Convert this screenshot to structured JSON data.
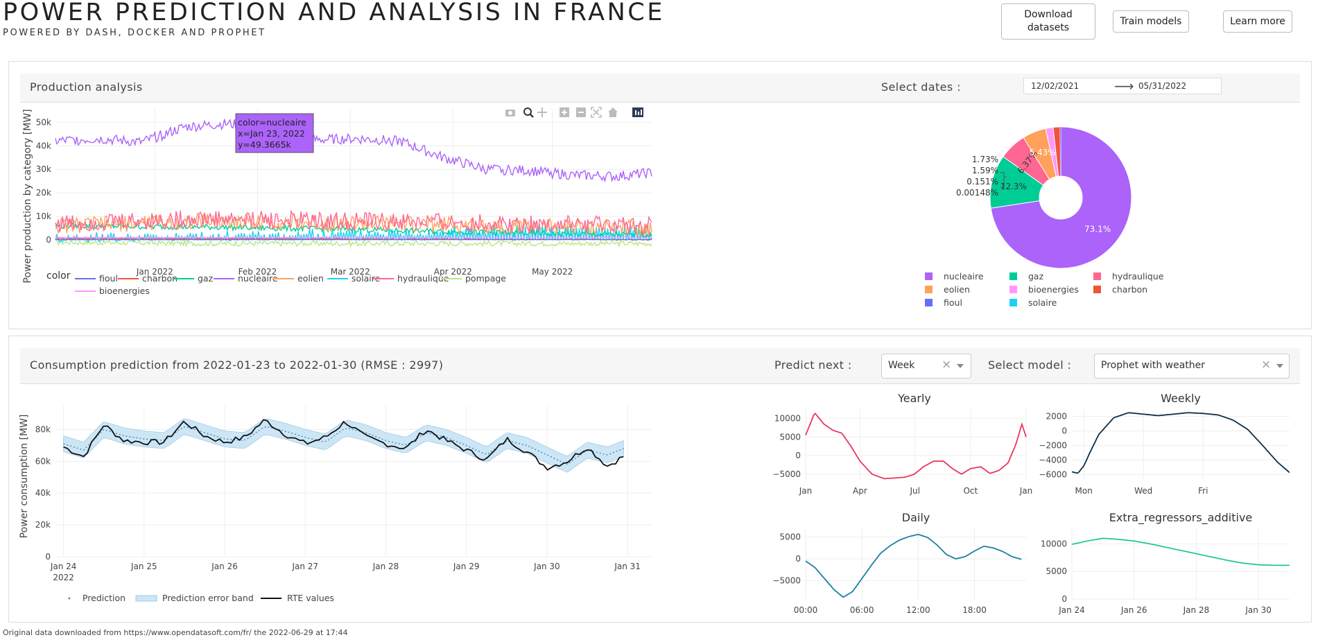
{
  "header": {
    "title": "POWER PREDICTION AND ANALYSIS IN FRANCE",
    "subtitle": "POWERED BY DASH, DOCKER AND PROPHET",
    "buttons": {
      "download": [
        "Download",
        "datasets"
      ],
      "train": "Train models",
      "learn": "Learn more"
    }
  },
  "production": {
    "title": "Production analysis",
    "select_dates_label": "Select dates :",
    "start_date": "12/02/2021",
    "end_date": "05/31/2022",
    "y_axis_label": "Power production by category [MW]",
    "legend_title": "color",
    "tooltip": [
      "color=nucleaire",
      "x=Jan 23, 2022",
      "y=49.3665k"
    ],
    "modebar_icons": [
      "camera-icon",
      "zoom-icon",
      "pan-icon",
      "zoom-in-icon",
      "zoom-out-icon",
      "autoscale-icon",
      "reset-axes-icon",
      "plotly-logo-icon"
    ]
  },
  "prediction": {
    "title": "Consumption prediction from 2022-01-23 to 2022-01-30 (RMSE : 2997)",
    "predict_next_label": "Predict next :",
    "predict_next_value": "Week",
    "select_model_label": "Select model :",
    "model_value": "Prophet with weather",
    "y_axis_label": "Power consumption [MW]"
  },
  "footer": "Original data downloaded from https://www.opendatasoft.com/fr/ the 2022-06-29 at 17:44",
  "colors": {
    "nucleaire": "#AB63FA",
    "hydraulique": "#FF6692",
    "eolien": "#FFA15A",
    "gaz": "#00CC96",
    "solaire": "#19D3F3",
    "pompage": "#B6E880",
    "fioul": "#636EFA",
    "charbon": "#EF553B",
    "bioenergies": "#FF97FF",
    "band": "#cde6f5",
    "rte": "#111111",
    "prediction": "#4a90c2"
  },
  "chart_data": [
    {
      "type": "line",
      "title": "",
      "ylabel": "Power production by category [MW]",
      "ylim": [
        -5000,
        56000
      ],
      "x_ticks": [
        "Jan 2022",
        "Feb 2022",
        "Mar 2022",
        "Apr 2022",
        "May 2022"
      ],
      "y_ticks": [
        "0",
        "10k",
        "20k",
        "30k",
        "40k",
        "50k"
      ],
      "y_tick_values": [
        0,
        10000,
        20000,
        30000,
        40000,
        50000
      ],
      "x_range": [
        "2021-12-02",
        "2022-05-31"
      ],
      "x_tick_dates": [
        "2022-01-01",
        "2022-02-01",
        "2022-03-01",
        "2022-04-01",
        "2022-05-01"
      ],
      "legend": [
        "fioul",
        "charbon",
        "gaz",
        "nucleaire",
        "eolien",
        "solaire",
        "hydraulique",
        "pompage",
        "bioenergies"
      ],
      "series": [
        {
          "name": "nucleaire",
          "x": [
            "2021-12-02",
            "2021-12-15",
            "2021-12-28",
            "2022-01-10",
            "2022-01-23",
            "2022-02-05",
            "2022-02-18",
            "2022-03-03",
            "2022-03-16",
            "2022-03-29",
            "2022-04-11",
            "2022-04-24",
            "2022-05-07",
            "2022-05-20",
            "2022-05-31"
          ],
          "values": [
            42000,
            43000,
            41500,
            48000,
            49400,
            47000,
            42500,
            43000,
            42000,
            35000,
            30000,
            29500,
            27500,
            27000,
            28500
          ]
        },
        {
          "name": "hydraulique",
          "x": [
            "2021-12-02",
            "2022-01-15",
            "2022-03-01",
            "2022-04-15",
            "2022-05-31"
          ],
          "values": [
            7000,
            9000,
            8000,
            7000,
            6000
          ]
        },
        {
          "name": "eolien",
          "x": [
            "2021-12-02",
            "2022-01-15",
            "2022-03-01",
            "2022-04-15",
            "2022-05-31"
          ],
          "values": [
            6000,
            8000,
            7000,
            6000,
            5000
          ]
        },
        {
          "name": "gaz",
          "x": [
            "2021-12-02",
            "2022-01-15",
            "2022-03-01",
            "2022-04-15",
            "2022-05-31"
          ],
          "values": [
            6000,
            5500,
            4500,
            3000,
            2000
          ]
        },
        {
          "name": "solaire",
          "x": [
            "2021-12-02",
            "2022-01-15",
            "2022-03-01",
            "2022-04-15",
            "2022-05-31"
          ],
          "values": [
            1000,
            1500,
            3000,
            4500,
            5000
          ]
        },
        {
          "name": "pompage",
          "x": [
            "2021-12-02",
            "2022-01-15",
            "2022-03-01",
            "2022-04-15",
            "2022-05-31"
          ],
          "values": [
            -1000,
            -1500,
            -1500,
            -1500,
            -1500
          ]
        },
        {
          "name": "fioul",
          "x": [
            "2021-12-02",
            "2022-05-31"
          ],
          "values": [
            150,
            150
          ]
        },
        {
          "name": "charbon",
          "x": [
            "2021-12-02",
            "2022-05-31"
          ],
          "values": [
            700,
            100
          ]
        },
        {
          "name": "bioenergies",
          "x": [
            "2021-12-02",
            "2022-05-31"
          ],
          "values": [
            1000,
            1000
          ]
        }
      ]
    },
    {
      "type": "pie",
      "labels": [
        "nucleaire",
        "gaz",
        "hydraulique",
        "eolien",
        "bioenergies",
        "charbon",
        "fioul",
        "solaire"
      ],
      "values": [
        73.1,
        12.3,
        6.37,
        5.43,
        1.73,
        1.59,
        0.151,
        0.00148
      ],
      "slice_labels": [
        "73.1%",
        "12.3%",
        "6.37%",
        "5.43%",
        "1.73%",
        "1.59%",
        "0.151%",
        "0.00148%"
      ],
      "hole": 0.3
    },
    {
      "type": "line",
      "title": "",
      "ylabel": "Power consumption [MW]",
      "ylim": [
        0,
        95000
      ],
      "x_ticks": [
        "Jan 24",
        "Jan 25",
        "Jan 26",
        "Jan 27",
        "Jan 28",
        "Jan 29",
        "Jan 30",
        "Jan 31"
      ],
      "x_tick_sub": "2022",
      "y_ticks": [
        "0",
        "20k",
        "40k",
        "60k",
        "80k"
      ],
      "y_tick_values": [
        0,
        20000,
        40000,
        60000,
        80000
      ],
      "x_range": [
        -0.1,
        7.3
      ],
      "legend": [
        "Prediction",
        "Prediction error band",
        "RTE values"
      ],
      "series": [
        {
          "name": "Prediction",
          "x_days": [
            0,
            0.25,
            0.5,
            0.75,
            1,
            1.25,
            1.5,
            1.75,
            2,
            2.25,
            2.5,
            2.75,
            3,
            3.25,
            3.5,
            3.75,
            4,
            4.25,
            4.5,
            4.75,
            5,
            5.25,
            5.5,
            5.75,
            6,
            6.25,
            6.5,
            6.75,
            6.95
          ],
          "values": [
            71000,
            67000,
            80000,
            76000,
            74000,
            73000,
            82000,
            78000,
            74000,
            73000,
            82000,
            79000,
            75000,
            72000,
            81000,
            78000,
            73000,
            70000,
            78000,
            75000,
            70000,
            64000,
            73000,
            70000,
            64000,
            58000,
            67000,
            64000,
            68000
          ]
        },
        {
          "name": "RTE values",
          "x_days": [
            0,
            0.25,
            0.5,
            0.75,
            1,
            1.25,
            1.5,
            1.75,
            2,
            2.25,
            2.5,
            2.75,
            3,
            3.25,
            3.5,
            3.75,
            4,
            4.25,
            4.5,
            4.75,
            5,
            5.25,
            5.5,
            5.75,
            6,
            6.25,
            6.5,
            6.75,
            6.95
          ],
          "values": [
            69000,
            63000,
            83000,
            73000,
            72000,
            72000,
            85000,
            76000,
            72000,
            75000,
            86000,
            77000,
            71000,
            75000,
            85000,
            75000,
            71000,
            68000,
            80000,
            73000,
            67000,
            61000,
            74000,
            66000,
            56000,
            60000,
            69000,
            57000,
            63000
          ]
        }
      ],
      "band_width": 5000
    },
    {
      "type": "line",
      "title": "Yearly",
      "x_ticks": [
        "Jan",
        "Apr",
        "Jul",
        "Oct",
        "Jan"
      ],
      "y_ticks": [
        "10000",
        "5000",
        "0",
        "−5000"
      ],
      "y_tick_values": [
        10000,
        5000,
        0,
        -5000
      ],
      "ylim": [
        -6500,
        12500
      ],
      "x_range": [
        0,
        365
      ],
      "series": [
        {
          "name": "",
          "x": [
            0,
            15,
            30,
            45,
            60,
            75,
            90,
            110,
            130,
            150,
            165,
            180,
            195,
            212,
            228,
            243,
            258,
            273,
            290,
            305,
            320,
            335,
            348,
            358,
            365
          ],
          "values": [
            5500,
            11500,
            8500,
            6800,
            6000,
            2500,
            -1500,
            -5000,
            -6200,
            -6000,
            -5800,
            -5000,
            -3000,
            -1500,
            -1500,
            -3500,
            -5000,
            -3500,
            -3000,
            -4800,
            -4000,
            -2000,
            3000,
            8500,
            5000
          ]
        }
      ]
    },
    {
      "type": "line",
      "title": "Weekly",
      "x_ticks": [
        "Mon",
        "Wed",
        "Fri"
      ],
      "y_ticks": [
        "2000",
        "0",
        "−2000",
        "−4000",
        "−6000"
      ],
      "y_tick_values": [
        2000,
        0,
        -2000,
        -4000,
        -6000
      ],
      "ylim": [
        -6500,
        3000
      ],
      "x_range": [
        -0.4,
        6.9
      ],
      "series": [
        {
          "name": "",
          "x": [
            -0.4,
            -0.2,
            0,
            0.2,
            0.5,
            1,
            1.5,
            2,
            2.5,
            3,
            3.5,
            4,
            4.5,
            5,
            5.5,
            6,
            6.5,
            6.9
          ],
          "values": [
            -5600,
            -5800,
            -4800,
            -3000,
            -500,
            1800,
            2500,
            2300,
            2100,
            2300,
            2500,
            2400,
            2200,
            1500,
            200,
            -2000,
            -4300,
            -5700
          ]
        }
      ]
    },
    {
      "type": "line",
      "title": "Daily",
      "x_ticks": [
        "00:00",
        "06:00",
        "12:00",
        "18:00"
      ],
      "y_ticks": [
        "5000",
        "0",
        "−5000"
      ],
      "y_tick_values": [
        5000,
        0,
        -5000
      ],
      "ylim": [
        -9200,
        7000
      ],
      "x_range": [
        0,
        23.5
      ],
      "series": [
        {
          "name": "",
          "x": [
            0,
            1,
            2,
            3,
            4,
            5,
            6,
            7,
            8,
            9,
            10,
            11,
            12,
            13,
            14,
            15,
            16,
            17,
            18,
            19,
            20,
            21,
            22,
            23
          ],
          "values": [
            -500,
            -2000,
            -4500,
            -7000,
            -8800,
            -7500,
            -4500,
            -1500,
            1300,
            3000,
            4300,
            5100,
            5600,
            4900,
            3200,
            1000,
            0,
            500,
            1800,
            2900,
            2500,
            1700,
            500,
            -100
          ]
        }
      ]
    },
    {
      "type": "line",
      "title": "Extra_regressors_additive",
      "x_ticks": [
        "Jan 24",
        "Jan 26",
        "Jan 28",
        "Jan 30"
      ],
      "y_ticks": [
        "10000",
        "5000",
        "0"
      ],
      "y_tick_values": [
        10000,
        5000,
        0
      ],
      "ylim": [
        0,
        12800
      ],
      "x_range": [
        0,
        7
      ],
      "series": [
        {
          "name": "",
          "x": [
            0,
            0.5,
            1,
            1.5,
            2,
            2.5,
            3,
            3.5,
            4,
            4.5,
            5,
            5.5,
            6,
            6.5,
            7
          ],
          "values": [
            9900,
            10500,
            11000,
            10800,
            10500,
            10000,
            9400,
            8800,
            8200,
            7600,
            7000,
            6500,
            6200,
            6100,
            6100
          ]
        }
      ]
    }
  ]
}
